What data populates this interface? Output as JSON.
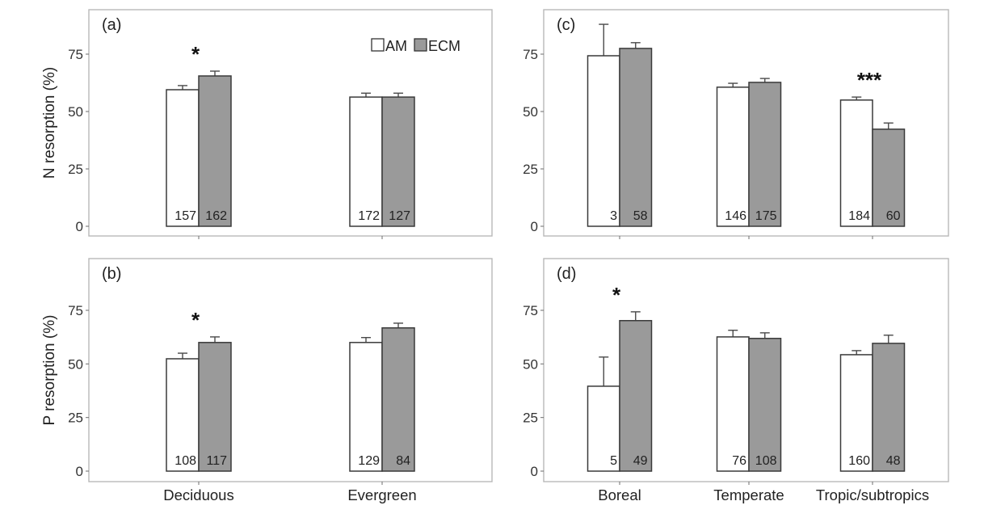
{
  "figure": {
    "legend": [
      {
        "label": "AM",
        "color": "#ffffff"
      },
      {
        "label": "ECM",
        "color": "#9a9a9a"
      }
    ]
  },
  "chart_data": [
    {
      "id": "a",
      "panel_label": "(a)",
      "type": "bar",
      "ylabel": "N resorption (%)",
      "ylim": [
        -3,
        95
      ],
      "yticks": [
        0,
        25,
        50,
        75
      ],
      "categories": [
        "Deciduous",
        "Evergreen"
      ],
      "show_category_labels": false,
      "show_ylabel": true,
      "show_legend": true,
      "grid": false,
      "series": [
        {
          "name": "AM",
          "color": "#ffffff",
          "values": [
            59.5,
            56.3
          ],
          "error_upper": [
            61.3,
            58.0
          ],
          "n": [
            "157",
            "172"
          ]
        },
        {
          "name": "ECM",
          "color": "#9a9a9a",
          "values": [
            65.5,
            56.3
          ],
          "error_upper": [
            67.6,
            58.0
          ],
          "n": [
            "162",
            "127"
          ]
        }
      ],
      "significance": [
        "*",
        ""
      ]
    },
    {
      "id": "c",
      "panel_label": "(c)",
      "type": "bar",
      "ylabel": "",
      "ylim": [
        -3,
        95
      ],
      "yticks": [
        0,
        25,
        50,
        75
      ],
      "categories": [
        "Boreal",
        "Temperate",
        "Tropic/subtropics"
      ],
      "show_category_labels": false,
      "show_ylabel": false,
      "show_legend": false,
      "grid": false,
      "series": [
        {
          "name": "AM",
          "color": "#ffffff",
          "values": [
            74.3,
            60.6,
            55.0
          ],
          "error_upper": [
            88.0,
            62.3,
            56.3
          ],
          "n": [
            "3",
            "146",
            "184"
          ]
        },
        {
          "name": "ECM",
          "color": "#9a9a9a",
          "values": [
            77.5,
            62.7,
            42.3
          ],
          "error_upper": [
            80.0,
            64.4,
            45.0
          ],
          "n": [
            "58",
            "175",
            "60"
          ]
        }
      ],
      "significance": [
        "",
        "",
        "***"
      ]
    },
    {
      "id": "b",
      "panel_label": "(b)",
      "type": "bar",
      "ylabel": "P resorption (%)",
      "ylim": [
        -5,
        90
      ],
      "yticks": [
        0,
        25,
        50,
        75
      ],
      "categories": [
        "Deciduous",
        "Evergreen"
      ],
      "show_category_labels": true,
      "show_ylabel": true,
      "show_legend": false,
      "grid": false,
      "series": [
        {
          "name": "AM",
          "color": "#ffffff",
          "values": [
            52.4,
            60.0
          ],
          "error_upper": [
            55.0,
            62.3
          ],
          "n": [
            "108",
            "129"
          ]
        },
        {
          "name": "ECM",
          "color": "#9a9a9a",
          "values": [
            60.0,
            66.8
          ],
          "error_upper": [
            62.6,
            69.0
          ],
          "n": [
            "117",
            "84"
          ]
        }
      ],
      "significance": [
        "*",
        ""
      ]
    },
    {
      "id": "d",
      "panel_label": "(d)",
      "type": "bar",
      "ylabel": "",
      "ylim": [
        -5,
        90
      ],
      "yticks": [
        0,
        25,
        50,
        75
      ],
      "categories": [
        "Boreal",
        "Temperate",
        "Tropic/subtropics"
      ],
      "show_category_labels": true,
      "show_ylabel": false,
      "show_legend": false,
      "grid": false,
      "series": [
        {
          "name": "AM",
          "color": "#ffffff",
          "values": [
            39.6,
            62.6,
            54.3
          ],
          "error_upper": [
            53.2,
            65.7,
            56.2
          ],
          "n": [
            "5",
            "76",
            "160"
          ]
        },
        {
          "name": "ECM",
          "color": "#9a9a9a",
          "values": [
            70.2,
            61.9,
            59.6
          ],
          "error_upper": [
            74.3,
            64.5,
            63.4
          ],
          "n": [
            "49",
            "108",
            "48"
          ]
        }
      ],
      "significance": [
        "*",
        "",
        ""
      ]
    }
  ]
}
